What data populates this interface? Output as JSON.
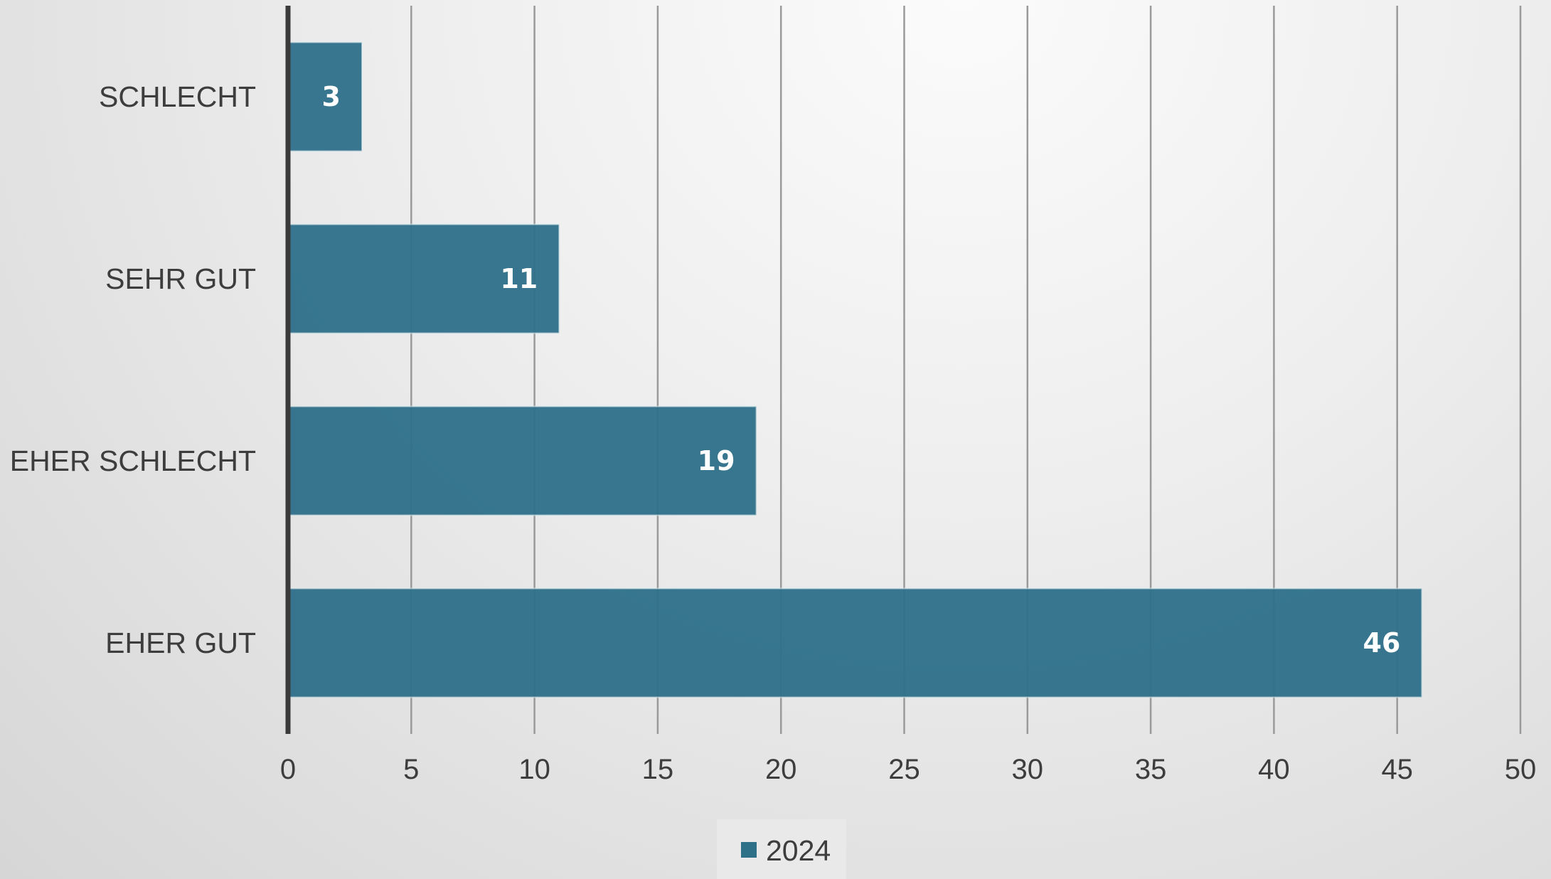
{
  "chart_data": {
    "type": "bar",
    "orientation": "horizontal",
    "categories": [
      "SCHLECHT",
      "SEHR GUT",
      "EHER SCHLECHT",
      "EHER GUT"
    ],
    "series": [
      {
        "name": "2024",
        "values": [
          3,
          11,
          19,
          46
        ],
        "color": "#2f7089"
      }
    ],
    "data_labels": true,
    "xlim": [
      0,
      50
    ],
    "x_ticks": [
      0,
      5,
      10,
      15,
      20,
      25,
      30,
      35,
      40,
      45,
      50
    ],
    "grid": true,
    "legend_position": "bottom",
    "xlabel": "",
    "ylabel": "",
    "colors": {
      "bar": "#2f7089",
      "axis": "#3a3a3a",
      "grid": "#9a9a9a",
      "text": "#3d3d3d",
      "data_label": "#ffffff"
    }
  }
}
